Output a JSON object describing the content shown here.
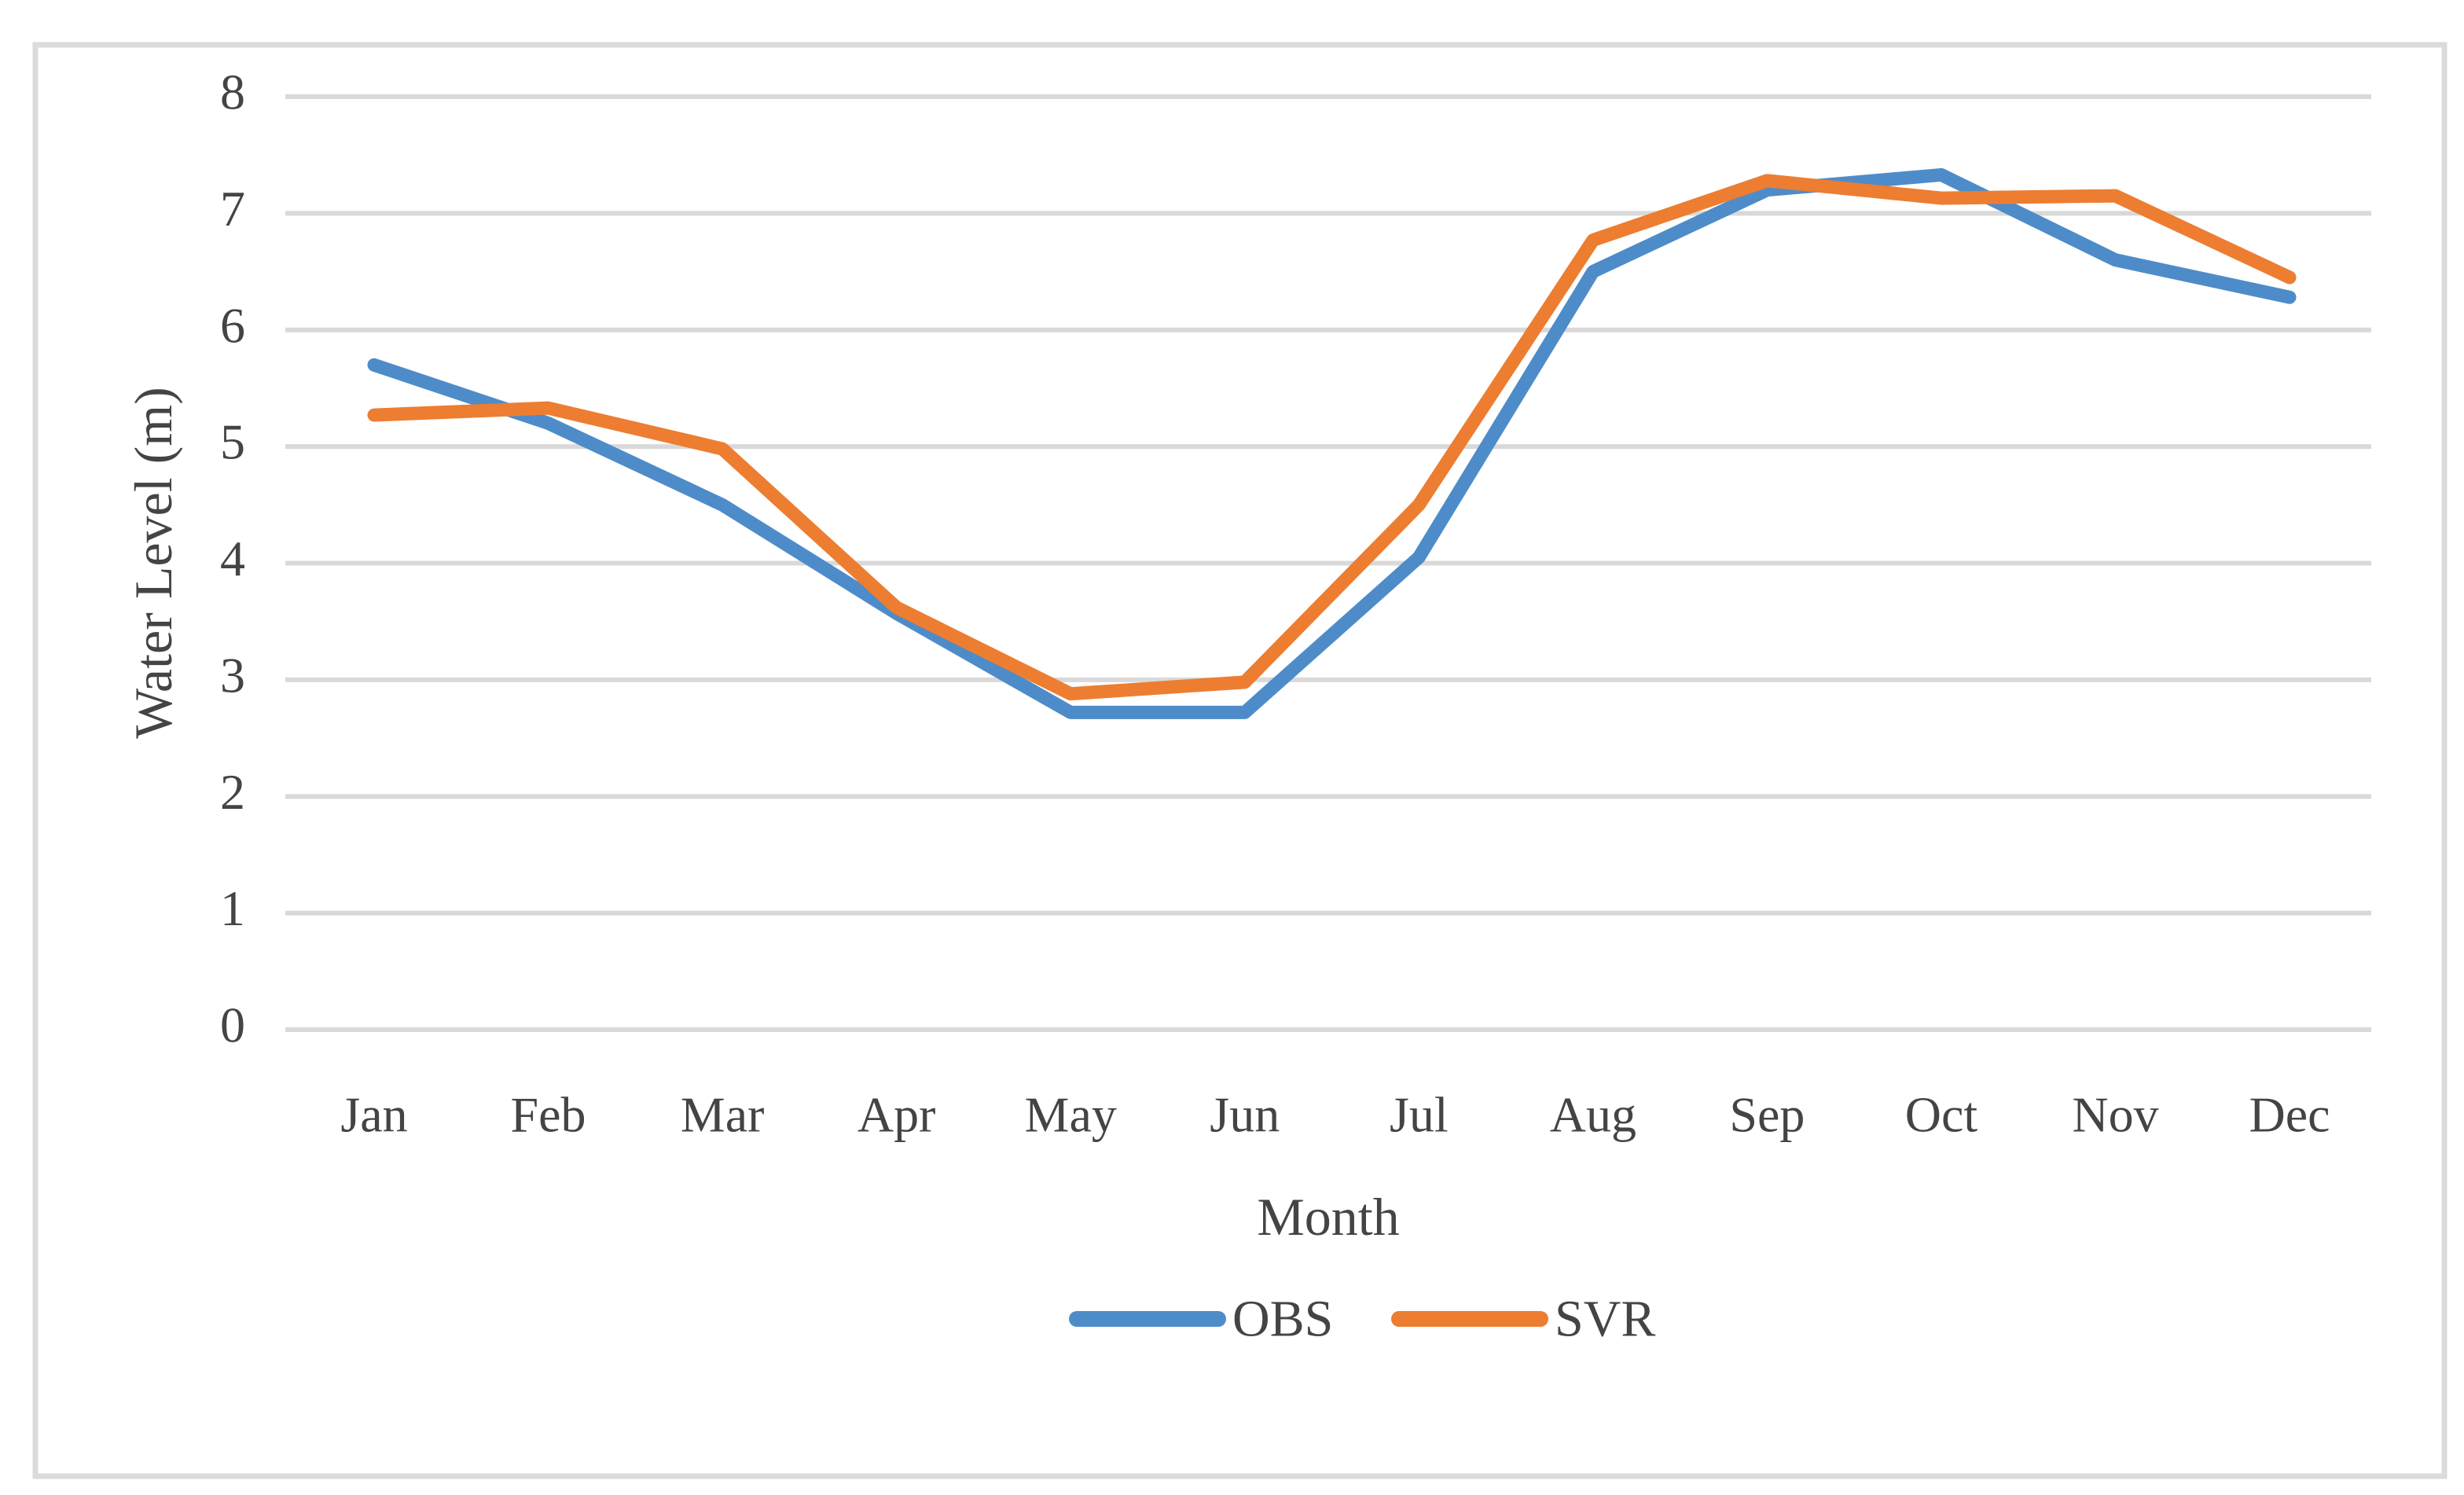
{
  "figure": {
    "background": "#FFFFFF",
    "border_color": "#DBDBDB",
    "gridline_color": "#D9D9D9",
    "axis_text_color": "#444444"
  },
  "chart_data": {
    "type": "line",
    "title": "",
    "xlabel": "Month",
    "ylabel": "Water Level (m)",
    "categories": [
      "Jan",
      "Feb",
      "Mar",
      "Apr",
      "May",
      "Jun",
      "Jul",
      "Aug",
      "Sep",
      "Oct",
      "Nov",
      "Dec"
    ],
    "y_ticks": [
      0,
      1,
      2,
      3,
      4,
      5,
      6,
      7,
      8
    ],
    "ylim": [
      0,
      8
    ],
    "grid": "horizontal",
    "legend_position": "bottom-center",
    "series": [
      {
        "name": "OBS",
        "color": "#4E8CC9",
        "values": [
          5.7,
          5.2,
          4.5,
          3.57,
          2.72,
          2.72,
          4.05,
          6.5,
          7.2,
          7.33,
          6.6,
          6.28
        ]
      },
      {
        "name": "SVR",
        "color": "#ED7D31",
        "values": [
          5.27,
          5.33,
          4.98,
          3.62,
          2.88,
          2.98,
          4.5,
          6.77,
          7.28,
          7.13,
          7.15,
          6.45
        ]
      }
    ]
  }
}
